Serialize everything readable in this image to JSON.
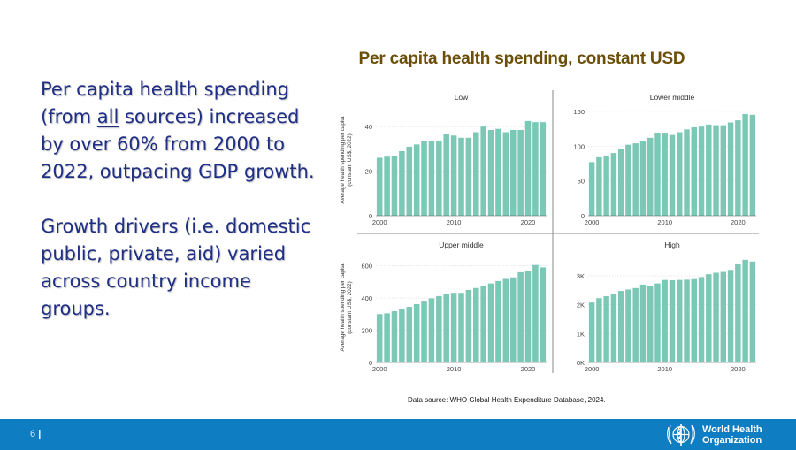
{
  "left_text": {
    "p1_part1": "Per capita health spending (from ",
    "p1_underlined": "all",
    "p1_part2": " sources) increased by over 60% from 2000 to 2022, outpacing GDP growth.",
    "p2": "Growth drivers (i.e. domestic public, private, aid) varied across country income groups."
  },
  "title": "Per capita health spending, constant USD",
  "source": "Data source: WHO Global Health Expenditure Database, 2024.",
  "footer": {
    "page_number": "6",
    "org_line1": "World Health",
    "org_line2": "Organization"
  },
  "colors": {
    "bar": "#7cc8b6",
    "footer": "#0f7dc2",
    "text": "#1f2f86",
    "title": "#6b4e0a"
  },
  "chart_data": [
    {
      "type": "bar",
      "title": "Low",
      "ylabel": "Average health spending per capita (constant US$, 2022)",
      "ylim": [
        0,
        50
      ],
      "yticks": [
        0,
        20,
        40
      ],
      "ytick_labels": [
        "0",
        "20",
        "40"
      ],
      "xticks": [
        2000,
        2010,
        2020
      ],
      "x": [
        2000,
        2001,
        2002,
        2003,
        2004,
        2005,
        2006,
        2007,
        2008,
        2009,
        2010,
        2011,
        2012,
        2013,
        2014,
        2015,
        2016,
        2017,
        2018,
        2019,
        2020,
        2021,
        2022
      ],
      "values": [
        26,
        26.5,
        27,
        29,
        31,
        32,
        33.5,
        33.5,
        33.5,
        36.5,
        36,
        35,
        35,
        37.5,
        40,
        38.5,
        39,
        37.5,
        38.5,
        38.5,
        42.5,
        42,
        42
      ]
    },
    {
      "type": "bar",
      "title": "Lower middle",
      "ylabel": "",
      "ylim": [
        0,
        160
      ],
      "yticks": [
        0,
        50,
        100,
        150
      ],
      "ytick_labels": [
        "0",
        "50",
        "100",
        "150"
      ],
      "xticks": [
        2000,
        2010,
        2020
      ],
      "x": [
        2000,
        2001,
        2002,
        2003,
        2004,
        2005,
        2006,
        2007,
        2008,
        2009,
        2010,
        2011,
        2012,
        2013,
        2014,
        2015,
        2016,
        2017,
        2018,
        2019,
        2020,
        2021,
        2022
      ],
      "values": [
        77,
        84,
        86,
        90,
        96,
        102,
        104,
        107,
        112,
        119,
        118,
        116,
        120,
        124,
        127,
        128,
        131,
        130,
        130,
        134,
        137,
        146,
        145
      ]
    },
    {
      "type": "bar",
      "title": "Upper middle",
      "ylabel": "Average health spending per capita (constant US$, 2022)",
      "ylim": [
        0,
        680
      ],
      "yticks": [
        0,
        200,
        400,
        600
      ],
      "ytick_labels": [
        "0",
        "200",
        "400",
        "600"
      ],
      "xticks": [
        2000,
        2010,
        2020
      ],
      "x": [
        2000,
        2001,
        2002,
        2003,
        2004,
        2005,
        2006,
        2007,
        2008,
        2009,
        2010,
        2011,
        2012,
        2013,
        2014,
        2015,
        2016,
        2017,
        2018,
        2019,
        2020,
        2021,
        2022
      ],
      "values": [
        300,
        305,
        318,
        330,
        345,
        362,
        378,
        398,
        412,
        425,
        432,
        432,
        450,
        462,
        472,
        490,
        505,
        518,
        528,
        560,
        570,
        605,
        590
      ]
    },
    {
      "type": "bar",
      "title": "High",
      "ylabel": "",
      "ylim": [
        0,
        3800
      ],
      "yticks": [
        0,
        1000,
        2000,
        3000
      ],
      "ytick_labels": [
        "0K",
        "1K",
        "2K",
        "3K"
      ],
      "xticks": [
        2000,
        2010,
        2020
      ],
      "x": [
        2000,
        2001,
        2002,
        2003,
        2004,
        2005,
        2006,
        2007,
        2008,
        2009,
        2010,
        2011,
        2012,
        2013,
        2014,
        2015,
        2016,
        2017,
        2018,
        2019,
        2020,
        2021,
        2022
      ],
      "values": [
        2080,
        2230,
        2300,
        2390,
        2480,
        2530,
        2580,
        2700,
        2640,
        2740,
        2860,
        2850,
        2860,
        2870,
        2890,
        2960,
        3060,
        3110,
        3140,
        3210,
        3400,
        3560,
        3500
      ]
    }
  ]
}
